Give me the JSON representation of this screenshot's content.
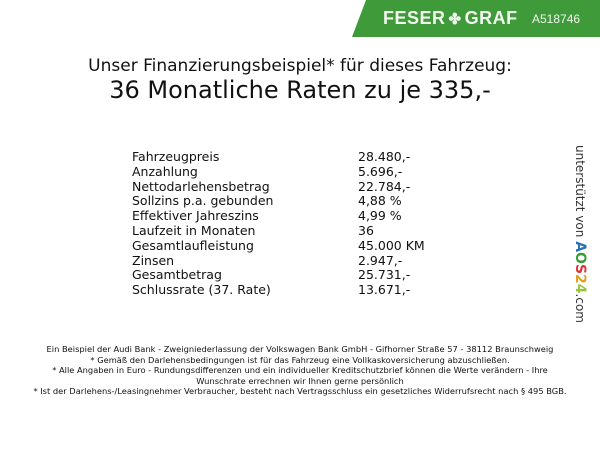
{
  "header": {
    "brand": "FESER",
    "brand2": "GRAF",
    "vehicle_code": "A518746",
    "brand_color": "#3f9a3a",
    "logo_icon": "clover-icon"
  },
  "title": {
    "line1": "Unser Finanzierungsbeispiel* für dieses Fahrzeug:",
    "line2": "36 Monatliche Raten zu je 335,-"
  },
  "rows": [
    {
      "label": "Fahrzeugpreis",
      "value": "28.480,-"
    },
    {
      "label": "Anzahlung",
      "value": "5.696,-"
    },
    {
      "label": "Nettodarlehensbetrag",
      "value": "22.784,-"
    },
    {
      "label": "Sollzins p.a. gebunden",
      "value": "4,88 %"
    },
    {
      "label": "Effektiver Jahreszins",
      "value": "4,99 %"
    },
    {
      "label": "Laufzeit in Monaten",
      "value": "36"
    },
    {
      "label": "Gesamtlaufleistung",
      "value": "45.000 KM"
    },
    {
      "label": "Zinsen",
      "value": "2.947,-"
    },
    {
      "label": "Gesamtbetrag",
      "value": "25.731,-"
    },
    {
      "label": "Schlussrate (37. Rate)",
      "value": "13.671,-"
    }
  ],
  "side": {
    "text": "unterstützt von",
    "logo": "AOS24",
    "suffix": ".com"
  },
  "footer": [
    "Ein Beispiel der Audi Bank - Zweigniederlassung der Volkswagen Bank GmbH - Gifhorner Straße 57 - 38112 Braunschweig",
    "* Gemäß den Darlehensbedingungen ist für das Fahrzeug eine Vollkaskoversicherung abzuschließen.",
    "* Alle Angaben in Euro - Rundungsdifferenzen und ein individueller Kreditschutzbrief können die Werte verändern - Ihre Wunschrate errechnen wir Ihnen gerne persönlich",
    "* Ist der Darlehens-/Leasingnehmer Verbraucher, besteht nach Vertragsschluss ein gesetzliches Widerrufsrecht nach § 495 BGB."
  ]
}
